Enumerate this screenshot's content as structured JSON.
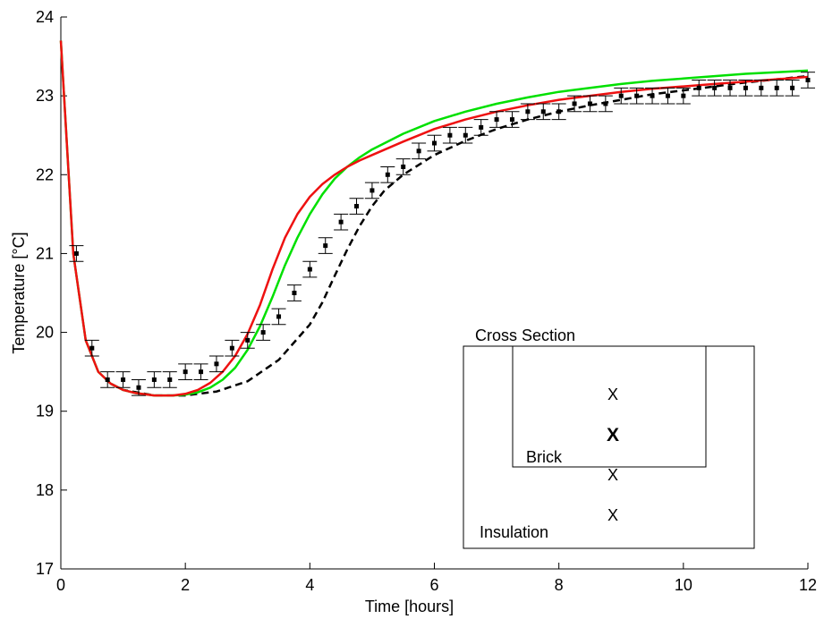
{
  "chart_data": {
    "type": "line",
    "xlabel": "Time [hours]",
    "ylabel": "Temperature [°C]",
    "xlim": [
      0,
      12
    ],
    "ylim": [
      17,
      24
    ],
    "xticks": [
      "0",
      "2",
      "4",
      "6",
      "8",
      "10",
      "12"
    ],
    "yticks": [
      "17",
      "18",
      "19",
      "20",
      "21",
      "22",
      "23",
      "24"
    ],
    "grid": false,
    "colors": {
      "green": "#00e000",
      "red": "#ee1111",
      "dashed": "#000000",
      "markers": "#000000"
    },
    "series": [
      {
        "style": "green-solid",
        "x": [
          0,
          0.2,
          0.4,
          0.6,
          0.8,
          1.0,
          1.2,
          1.5,
          1.8,
          2.0,
          2.2,
          2.4,
          2.6,
          2.8,
          3.0,
          3.2,
          3.4,
          3.6,
          3.8,
          4.0,
          4.2,
          4.4,
          4.6,
          4.8,
          5.0,
          5.5,
          6.0,
          6.5,
          7.0,
          7.5,
          8.0,
          8.5,
          9.0,
          9.5,
          10.0,
          10.5,
          11.0,
          11.5,
          12.0
        ],
        "y": [
          23.7,
          21.0,
          19.9,
          19.5,
          19.35,
          19.27,
          19.23,
          19.2,
          19.2,
          19.21,
          19.24,
          19.3,
          19.4,
          19.55,
          19.78,
          20.08,
          20.45,
          20.85,
          21.2,
          21.5,
          21.75,
          21.95,
          22.1,
          22.22,
          22.32,
          22.52,
          22.68,
          22.8,
          22.9,
          22.98,
          23.05,
          23.1,
          23.15,
          23.19,
          23.22,
          23.25,
          23.28,
          23.3,
          23.32
        ]
      },
      {
        "style": "red-solid",
        "x": [
          0,
          0.2,
          0.4,
          0.6,
          0.8,
          1.0,
          1.2,
          1.5,
          1.8,
          2.0,
          2.2,
          2.4,
          2.6,
          2.8,
          3.0,
          3.2,
          3.4,
          3.6,
          3.8,
          4.0,
          4.2,
          4.4,
          4.6,
          4.8,
          5.0,
          5.5,
          6.0,
          6.5,
          7.0,
          7.5,
          8.0,
          8.5,
          9.0,
          9.5,
          10.0,
          10.5,
          11.0,
          11.5,
          12.0
        ],
        "y": [
          23.7,
          21.0,
          19.9,
          19.5,
          19.35,
          19.27,
          19.23,
          19.2,
          19.2,
          19.22,
          19.27,
          19.36,
          19.5,
          19.7,
          19.98,
          20.35,
          20.8,
          21.2,
          21.5,
          21.72,
          21.88,
          22.0,
          22.1,
          22.18,
          22.25,
          22.42,
          22.58,
          22.7,
          22.8,
          22.88,
          22.95,
          23.0,
          23.05,
          23.09,
          23.12,
          23.15,
          23.18,
          23.21,
          23.24
        ]
      },
      {
        "style": "black-dashed",
        "x": [
          0.8,
          1.0,
          1.5,
          2.0,
          2.5,
          3.0,
          3.5,
          4.0,
          4.2,
          4.4,
          4.6,
          4.8,
          5.0,
          5.2,
          5.5,
          6.0,
          6.5,
          7.0,
          7.5,
          8.0,
          8.5,
          9.0,
          9.5,
          10.0,
          10.5,
          11.0,
          11.5,
          12.0
        ],
        "y": [
          19.35,
          19.27,
          19.2,
          19.2,
          19.25,
          19.38,
          19.65,
          20.1,
          20.38,
          20.72,
          21.05,
          21.35,
          21.6,
          21.8,
          22.0,
          22.25,
          22.43,
          22.58,
          22.7,
          22.8,
          22.88,
          22.95,
          23.02,
          23.07,
          23.12,
          23.17,
          23.21,
          23.25
        ]
      },
      {
        "style": "markers-errorbars",
        "x": [
          0.25,
          0.5,
          0.75,
          1.0,
          1.25,
          1.5,
          1.75,
          2.0,
          2.25,
          2.5,
          2.75,
          3.0,
          3.25,
          3.5,
          3.75,
          4.0,
          4.25,
          4.5,
          4.75,
          5.0,
          5.25,
          5.5,
          5.75,
          6.0,
          6.25,
          6.5,
          6.75,
          7.0,
          7.25,
          7.5,
          7.75,
          8.0,
          8.25,
          8.5,
          8.75,
          9.0,
          9.25,
          9.5,
          9.75,
          10.0,
          10.25,
          10.5,
          10.75,
          11.0,
          11.25,
          11.5,
          11.75,
          12.0
        ],
        "y": [
          21.0,
          19.8,
          19.4,
          19.4,
          19.3,
          19.4,
          19.4,
          19.5,
          19.5,
          19.6,
          19.8,
          19.9,
          20.0,
          20.2,
          20.5,
          20.8,
          21.1,
          21.4,
          21.6,
          21.8,
          22.0,
          22.1,
          22.3,
          22.4,
          22.5,
          22.5,
          22.6,
          22.7,
          22.7,
          22.8,
          22.8,
          22.8,
          22.9,
          22.9,
          22.9,
          23.0,
          23.0,
          23.0,
          23.0,
          23.0,
          23.1,
          23.1,
          23.1,
          23.1,
          23.1,
          23.1,
          23.1,
          23.2
        ],
        "err": 0.1
      }
    ],
    "inset": {
      "title": "Cross Section",
      "inner_label": "Brick",
      "outer_label": "Insulation",
      "markers": [
        {
          "text": "X",
          "color": "#000000"
        },
        {
          "text": "X",
          "color": "#ee1111"
        },
        {
          "text": "X",
          "color": "#000000"
        },
        {
          "text": "X",
          "color": "#000000"
        }
      ]
    }
  }
}
